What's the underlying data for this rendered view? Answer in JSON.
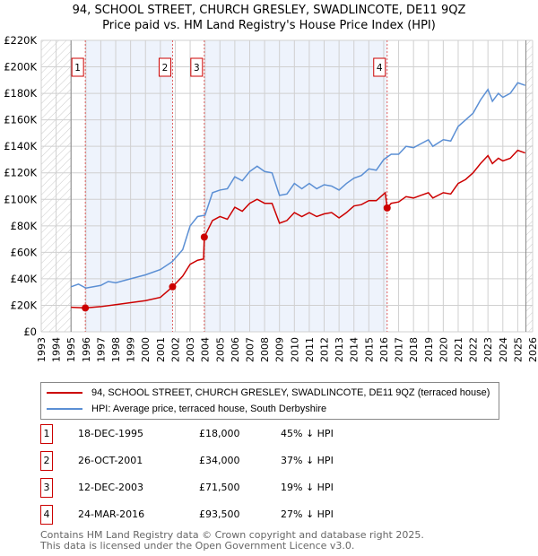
{
  "title": "94, SCHOOL STREET, CHURCH GRESLEY, SWADLINCOTE, DE11 9QZ",
  "subtitle": "Price paid vs. HM Land Registry's House Price Index (HPI)",
  "chart_data": {
    "type": "line",
    "xlim": [
      1993,
      2026
    ],
    "ylim": [
      0,
      220000
    ],
    "yticks": [
      {
        "v": 0,
        "label": "£0"
      },
      {
        "v": 20000,
        "label": "£20K"
      },
      {
        "v": 40000,
        "label": "£40K"
      },
      {
        "v": 60000,
        "label": "£60K"
      },
      {
        "v": 80000,
        "label": "£80K"
      },
      {
        "v": 100000,
        "label": "£100K"
      },
      {
        "v": 120000,
        "label": "£120K"
      },
      {
        "v": 140000,
        "label": "£140K"
      },
      {
        "v": 160000,
        "label": "£160K"
      },
      {
        "v": 180000,
        "label": "£180K"
      },
      {
        "v": 200000,
        "label": "£200K"
      },
      {
        "v": 220000,
        "label": "£220K"
      }
    ],
    "xticks": [
      "1993",
      "1994",
      "1995",
      "1996",
      "1997",
      "1998",
      "1999",
      "2000",
      "2001",
      "2002",
      "2003",
      "2004",
      "2005",
      "2006",
      "2007",
      "2008",
      "2009",
      "2010",
      "2011",
      "2012",
      "2013",
      "2014",
      "2015",
      "2016",
      "2017",
      "2018",
      "2019",
      "2020",
      "2021",
      "2022",
      "2023",
      "2024",
      "2025",
      "2026"
    ],
    "grid": true,
    "series": [
      {
        "name": "94, SCHOOL STREET, CHURCH GRESLEY, SWADLINCOTE, DE11 9QZ (terraced house)",
        "color": "#cc0000",
        "x": [
          1995,
          1995.96,
          1997,
          1998,
          1999,
          2000,
          2001,
          2001.82,
          2002.5,
          2003,
          2003.5,
          2003.9,
          2003.95,
          2004.5,
          2005,
          2005.5,
          2006,
          2006.5,
          2007,
          2007.5,
          2008,
          2008.5,
          2009,
          2009.5,
          2010,
          2010.5,
          2011,
          2011.5,
          2012,
          2012.5,
          2013,
          2013.5,
          2014,
          2014.5,
          2015,
          2015.5,
          2016.1,
          2016.23,
          2016.5,
          2017,
          2017.5,
          2018,
          2018.5,
          2019,
          2019.3,
          2020,
          2020.5,
          2021,
          2021.5,
          2022,
          2022.5,
          2023,
          2023.3,
          2023.7,
          2024,
          2024.5,
          2025,
          2025.5
        ],
        "y": [
          18500,
          18000,
          19000,
          20500,
          22000,
          23500,
          26000,
          34000,
          42000,
          51000,
          54000,
          55000,
          71500,
          84000,
          87000,
          85000,
          94000,
          91000,
          97000,
          100000,
          97000,
          97000,
          82000,
          84000,
          90000,
          87000,
          90000,
          87000,
          89000,
          90000,
          86000,
          90000,
          95000,
          96000,
          99000,
          99000,
          105000,
          93500,
          97000,
          98000,
          102000,
          101000,
          103000,
          105000,
          101000,
          105000,
          104000,
          112000,
          115000,
          120000,
          127000,
          133000,
          127000,
          131000,
          129000,
          131000,
          137000,
          135000
        ]
      },
      {
        "name": "HPI: Average price, terraced house, South Derbyshire",
        "color": "#5b8fd4",
        "x": [
          1995,
          1995.5,
          1996,
          1997,
          1997.5,
          1998,
          1999,
          2000,
          2001,
          2001.8,
          2002.5,
          2003,
          2003.5,
          2004,
          2004.5,
          2005,
          2005.5,
          2006,
          2006.5,
          2007,
          2007.5,
          2008,
          2008.5,
          2009,
          2009.5,
          2010,
          2010.5,
          2011,
          2011.5,
          2012,
          2012.5,
          2013,
          2013.5,
          2014,
          2014.5,
          2015,
          2015.5,
          2016,
          2016.5,
          2017,
          2017.5,
          2018,
          2018.5,
          2019,
          2019.3,
          2020,
          2020.5,
          2021,
          2021.5,
          2022,
          2022.5,
          2023,
          2023.3,
          2023.7,
          2024,
          2024.5,
          2025,
          2025.5
        ],
        "y": [
          34000,
          36000,
          33000,
          35000,
          38000,
          37000,
          40000,
          43000,
          47000,
          53000,
          62000,
          80000,
          87000,
          88000,
          105000,
          107000,
          108000,
          117000,
          114000,
          121000,
          125000,
          121000,
          120000,
          103000,
          104000,
          112000,
          108000,
          112000,
          108000,
          111000,
          110000,
          107000,
          112000,
          116000,
          118000,
          123000,
          122000,
          130000,
          134000,
          134000,
          140000,
          139000,
          142000,
          145000,
          140000,
          145000,
          144000,
          155000,
          160000,
          165000,
          175000,
          183000,
          174000,
          180000,
          177000,
          180000,
          188000,
          186000
        ]
      }
    ],
    "sales": [
      {
        "num": "1",
        "x": 1995.96,
        "y": 18000,
        "date": "18-DEC-1995",
        "price": "£18,000",
        "hpi": "45% ↓ HPI"
      },
      {
        "num": "2",
        "x": 2001.82,
        "y": 34000,
        "date": "26-OCT-2001",
        "price": "£34,000",
        "hpi": "37% ↓ HPI"
      },
      {
        "num": "3",
        "x": 2003.95,
        "y": 71500,
        "date": "12-DEC-2003",
        "price": "£71,500",
        "hpi": "19% ↓ HPI"
      },
      {
        "num": "4",
        "x": 2016.23,
        "y": 93500,
        "date": "24-MAR-2016",
        "price": "£93,500",
        "hpi": "27% ↓ HPI"
      }
    ],
    "shaded_ranges": [
      [
        1995.96,
        2001.82
      ],
      [
        2003.95,
        2016.23
      ]
    ],
    "hatched_ranges": [
      [
        1993,
        1995
      ],
      [
        2025.55,
        2026
      ]
    ]
  },
  "footer": {
    "line1": "Contains HM Land Registry data © Crown copyright and database right 2025.",
    "line2": "This data is licensed under the Open Government Licence v3.0."
  }
}
